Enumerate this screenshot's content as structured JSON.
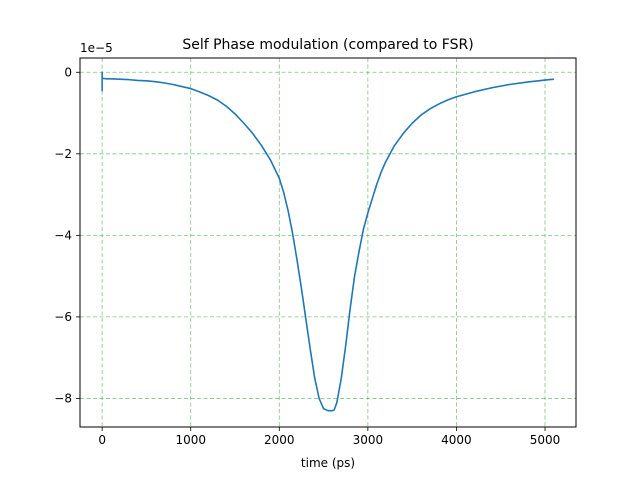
{
  "chart_data": {
    "type": "line",
    "title": "Self Phase modulation (compared to FSR)",
    "xlabel": "time (ps)",
    "ylabel": "",
    "y_offset_label": "1e−5",
    "xlim": [
      -250,
      5350
    ],
    "ylim": [
      -8.7,
      0.35
    ],
    "xticks": [
      0,
      1000,
      2000,
      3000,
      4000,
      5000
    ],
    "xtick_labels": [
      "0",
      "1000",
      "2000",
      "3000",
      "4000",
      "5000"
    ],
    "yticks": [
      0,
      -2,
      -4,
      -6,
      -8
    ],
    "ytick_labels": [
      "0",
      "−2",
      "−4",
      "−6",
      "−8"
    ],
    "grid": true,
    "grid_color": "#2ca02c",
    "series": [
      {
        "color": "#1f77b4",
        "x": [
          0,
          0,
          0,
          0,
          0,
          0,
          0,
          0,
          0,
          0,
          0,
          10,
          50,
          100,
          200,
          300,
          400,
          500,
          600,
          700,
          800,
          900,
          1000,
          1100,
          1200,
          1300,
          1400,
          1500,
          1600,
          1700,
          1800,
          1900,
          2000,
          2050,
          2100,
          2150,
          2200,
          2250,
          2300,
          2350,
          2400,
          2450,
          2500,
          2550,
          2600,
          2620,
          2650,
          2700,
          2750,
          2800,
          2850,
          2900,
          2950,
          3000,
          3050,
          3100,
          3150,
          3200,
          3300,
          3400,
          3500,
          3600,
          3700,
          3800,
          3900,
          4000,
          4200,
          4400,
          4600,
          4800,
          5000,
          5100
        ],
        "y": [
          -0.1,
          -0.45,
          -0.05,
          -0.4,
          0,
          -0.35,
          -0.1,
          -0.3,
          -0.15,
          -0.2,
          -0.15,
          -0.15,
          -0.16,
          -0.16,
          -0.17,
          -0.18,
          -0.2,
          -0.21,
          -0.23,
          -0.26,
          -0.3,
          -0.35,
          -0.4,
          -0.48,
          -0.57,
          -0.68,
          -0.83,
          -1.02,
          -1.25,
          -1.5,
          -1.8,
          -2.15,
          -2.6,
          -2.95,
          -3.4,
          -3.95,
          -4.6,
          -5.3,
          -6.05,
          -6.8,
          -7.5,
          -8.0,
          -8.25,
          -8.3,
          -8.3,
          -8.28,
          -8.1,
          -7.5,
          -6.7,
          -5.8,
          -5.0,
          -4.4,
          -3.85,
          -3.45,
          -3.1,
          -2.75,
          -2.45,
          -2.2,
          -1.8,
          -1.5,
          -1.25,
          -1.05,
          -0.9,
          -0.78,
          -0.68,
          -0.6,
          -0.48,
          -0.38,
          -0.3,
          -0.24,
          -0.19,
          -0.17
        ]
      }
    ]
  }
}
